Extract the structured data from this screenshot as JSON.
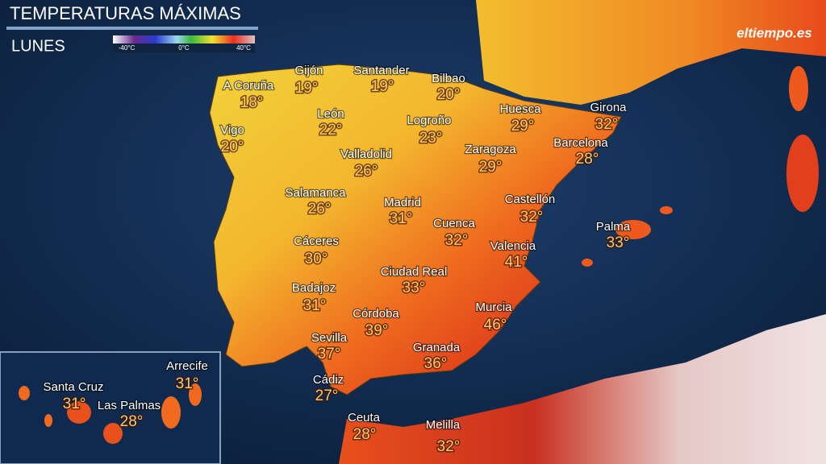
{
  "header": {
    "title": "TEMPERATURAS MÁXIMAS",
    "subtitle": "LUNES"
  },
  "legend": {
    "labels": [
      "-40°C",
      "0°C",
      "40°C"
    ]
  },
  "logo": "eltiempo.es",
  "cities": [
    {
      "name": "A Coruña",
      "temp": "18°"
    },
    {
      "name": "Gijón",
      "temp": "19°"
    },
    {
      "name": "Santander",
      "temp": "19°"
    },
    {
      "name": "Bilbao",
      "temp": "20°"
    },
    {
      "name": "Huesca",
      "temp": "29°"
    },
    {
      "name": "Girona",
      "temp": "32°"
    },
    {
      "name": "Vigo",
      "temp": "20°"
    },
    {
      "name": "León",
      "temp": "22°"
    },
    {
      "name": "Logroño",
      "temp": "23°"
    },
    {
      "name": "Barcelona",
      "temp": "28°"
    },
    {
      "name": "Valladolid",
      "temp": "26°"
    },
    {
      "name": "Zaragoza",
      "temp": "29°"
    },
    {
      "name": "Salamanca",
      "temp": "26°"
    },
    {
      "name": "Madrid",
      "temp": "31°"
    },
    {
      "name": "Castellón",
      "temp": "32°"
    },
    {
      "name": "Cuenca",
      "temp": "32°"
    },
    {
      "name": "Palma",
      "temp": "33°"
    },
    {
      "name": "Cáceres",
      "temp": "30°"
    },
    {
      "name": "Valencia",
      "temp": "41°"
    },
    {
      "name": "Ciudad Real",
      "temp": "33°"
    },
    {
      "name": "Badajoz",
      "temp": "31°"
    },
    {
      "name": "Córdoba",
      "temp": "39°"
    },
    {
      "name": "Murcia",
      "temp": "46°"
    },
    {
      "name": "Sevilla",
      "temp": "37°"
    },
    {
      "name": "Granada",
      "temp": "36°"
    },
    {
      "name": "Cádiz",
      "temp": "27°"
    },
    {
      "name": "Ceuta",
      "temp": "28°"
    },
    {
      "name": "Melilla",
      "temp": "32°"
    },
    {
      "name": "Arrecife",
      "temp": "31°"
    },
    {
      "name": "Santa Cruz",
      "temp": "31°"
    },
    {
      "name": "Las Palmas",
      "temp": "28°"
    }
  ]
}
